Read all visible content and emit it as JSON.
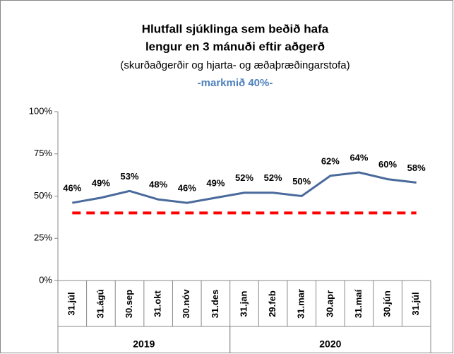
{
  "chart_data": {
    "type": "line",
    "title": [
      "Hlutfall sjúklinga sem beðið hafa",
      "lengur en 3 mánuði eftir aðgerð"
    ],
    "subtitle": "(skurðaðgerðir og hjarta- og æðaþræðingarstofa)",
    "goal_label": "-markmið 40%-",
    "categories": [
      "31.júl",
      "31.ágú",
      "30.sep",
      "31.okt",
      "30.nóv",
      "31.des",
      "31.jan",
      "29.feb",
      "31.mar",
      "30.apr",
      "31.maí",
      "30.jún",
      "31.júl"
    ],
    "groups": [
      {
        "label": "2019",
        "span": 6
      },
      {
        "label": "2020",
        "span": 7
      }
    ],
    "series": [
      {
        "name": "Hlutfall",
        "color": "#4a6a9c",
        "values": [
          46,
          49,
          53,
          48,
          46,
          49,
          52,
          52,
          50,
          62,
          64,
          60,
          58
        ],
        "value_labels": [
          "46%",
          "49%",
          "53%",
          "48%",
          "46%",
          "49%",
          "52%",
          "52%",
          "50%",
          "62%",
          "64%",
          "60%",
          "58%"
        ]
      }
    ],
    "target": {
      "value": 40,
      "color": "#ff0000"
    },
    "ylim": [
      0,
      100
    ],
    "yticks": [
      {
        "value": 0,
        "label": "0%"
      },
      {
        "value": 25,
        "label": "25%"
      },
      {
        "value": 50,
        "label": "50%"
      },
      {
        "value": 75,
        "label": "75%"
      },
      {
        "value": 100,
        "label": "100%"
      }
    ]
  }
}
